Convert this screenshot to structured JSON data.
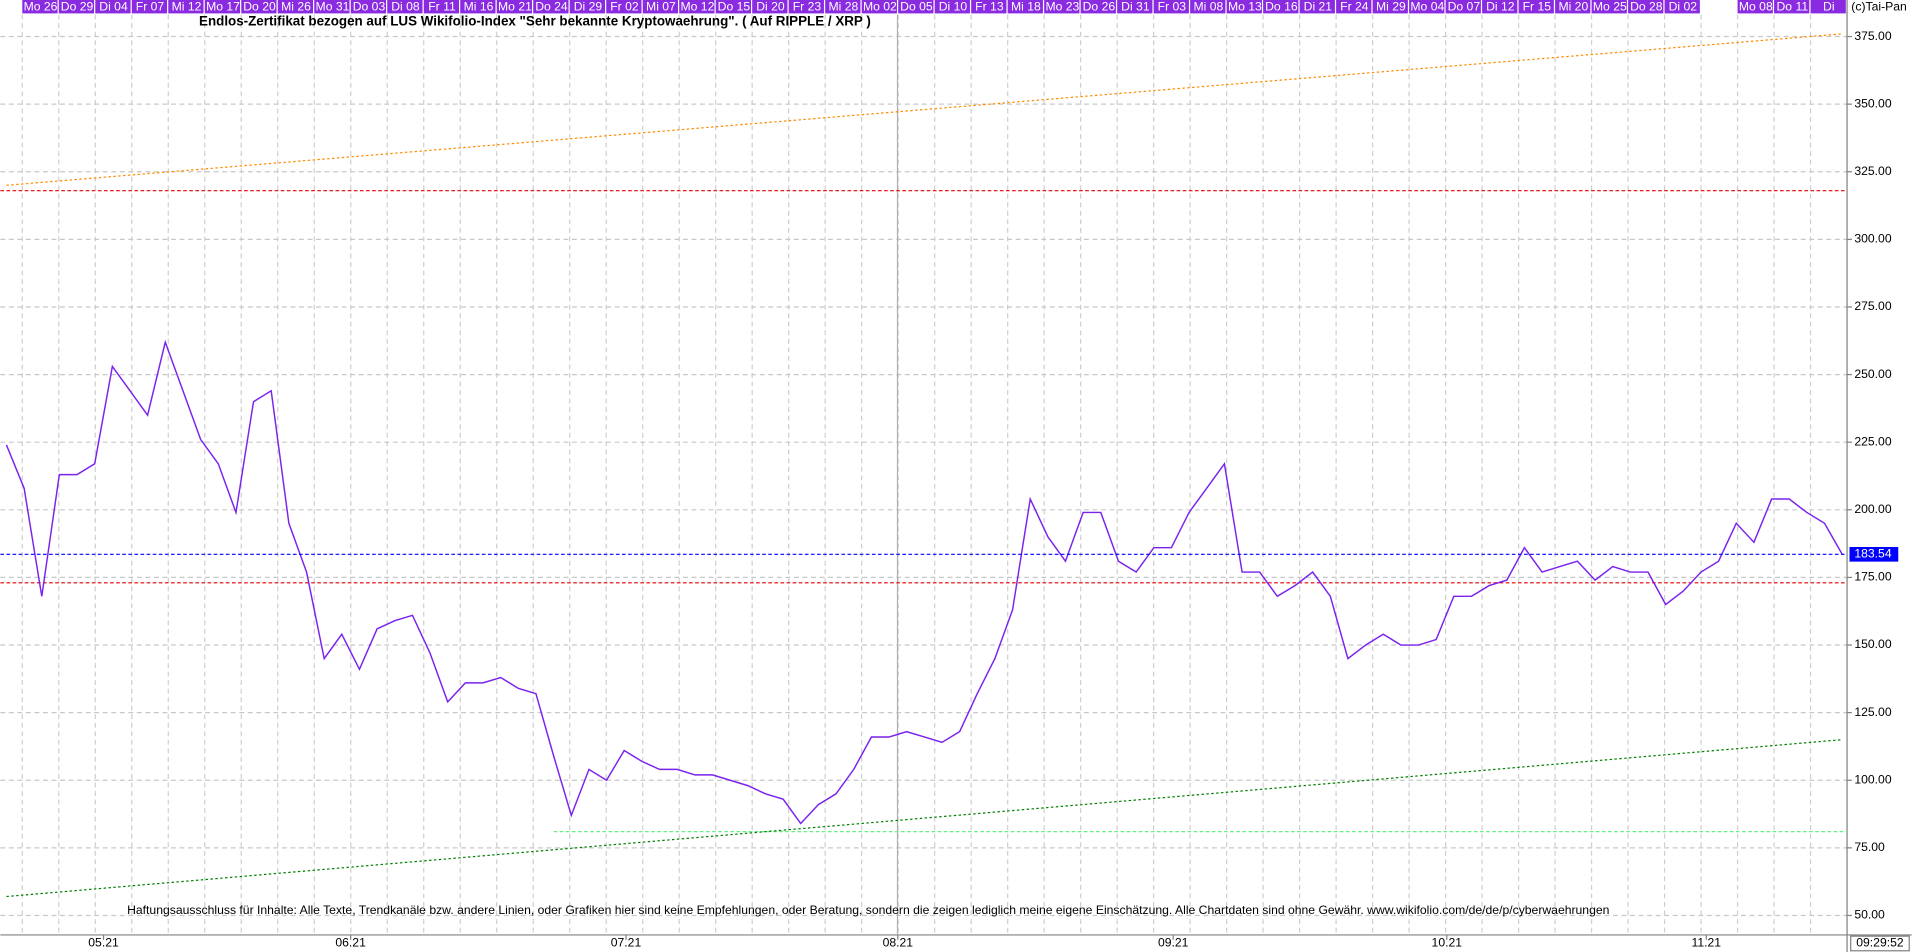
{
  "chart_data": {
    "type": "line",
    "title": "Endlos-Zertifikat bezogen auf LUS Wikifolio-Index \"Sehr bekannte Kryptowaehrung\". ( Auf RIPPLE / XRP )",
    "copyright": "(c)Tai-Pan",
    "disclaimer": "Haftungsausschluss für Inhalte: Alle Texte, Trendkanäle bzw. andere Linien, oder Grafiken hier sind keine Empfehlungen, oder Beratung, sondern die zeigen lediglich meine eigene Einschätzung. Alle Chartdaten sind ohne Gewähr.  www.wikifolio.com/de/de/p/cyberwaehrungen",
    "time": "09:29:52",
    "top_labels": [
      "Mo 26",
      "Do 29",
      "Di 04",
      "Fr 07",
      "Mi 12",
      "Mo 17",
      "Do 20",
      "Mi 26",
      "Mo 31",
      "Do 03",
      "Di 08",
      "Fr 11",
      "Mi 16",
      "Mo 21",
      "Do 24",
      "Di 29",
      "Fr 02",
      "Mi 07",
      "Mo 12",
      "Do 15",
      "Di 20",
      "Fr 23",
      "Mi 28",
      "Mo 02",
      "Do 05",
      "Di 10",
      "Fr 13",
      "Mi 18",
      "Mo 23",
      "Do 26",
      "Di 31",
      "Fr 03",
      "Mi 08",
      "Mo 13",
      "Do 16",
      "Di 21",
      "Fr 24",
      "Mi 29",
      "Mo 04",
      "Do 07",
      "Di 12",
      "Fr 15",
      "Mi 20",
      "Mo 25",
      "Do 28",
      "Di 02",
      null,
      "Mo 08",
      "Do 11",
      "Di"
    ],
    "values": [
      224,
      208,
      168,
      213,
      213,
      217,
      253,
      244,
      235,
      262,
      244,
      226,
      217,
      199,
      240,
      244,
      195,
      177,
      145,
      154,
      141,
      156,
      159,
      161,
      147,
      129,
      136,
      136,
      138,
      134,
      132,
      109,
      87,
      104,
      100,
      111,
      107,
      104,
      104,
      102,
      102,
      100,
      98,
      95,
      93,
      84,
      91,
      95,
      104,
      116,
      116,
      118,
      116,
      114,
      118,
      132,
      145,
      163,
      204,
      190,
      181,
      199,
      199,
      181,
      177,
      186,
      186,
      199,
      208,
      217,
      177,
      177,
      168,
      172,
      177,
      168,
      145,
      150,
      154,
      150,
      150,
      152,
      168,
      168,
      172,
      174,
      186,
      177,
      179,
      181,
      174,
      179,
      177,
      177,
      165,
      170,
      177,
      181,
      195,
      188,
      204,
      204,
      199,
      195,
      183.54
    ],
    "color": "#7a22ee",
    "last_color": "#0000ff",
    "xlim": [
      0,
      104
    ],
    "xticks": [
      {
        "value": 5.5,
        "label": "05.21"
      },
      {
        "value": 19.5,
        "label": "06.21"
      },
      {
        "value": 35.1,
        "label": "07.21"
      },
      {
        "value": 50.5,
        "label": "08.21"
      },
      {
        "value": 66.1,
        "label": "09.21"
      },
      {
        "value": 81.6,
        "label": "10.21"
      },
      {
        "value": 96.3,
        "label": "11.21"
      }
    ],
    "ylim": [
      42.8,
      383.1
    ],
    "yticks": [
      {
        "value": 50,
        "label": "50.00"
      },
      {
        "value": 75,
        "label": "75.00"
      },
      {
        "value": 100,
        "label": "100.00"
      },
      {
        "value": 125,
        "label": "125.00"
      },
      {
        "value": 150,
        "label": "150.00"
      },
      {
        "value": 175,
        "label": "175.00"
      },
      {
        "value": 200,
        "label": "200.00"
      },
      {
        "value": 225,
        "label": "225.00"
      },
      {
        "value": 250,
        "label": "250.00"
      },
      {
        "value": 275,
        "label": "275.00"
      },
      {
        "value": 300,
        "label": "300.00"
      },
      {
        "value": 325,
        "label": "325.00"
      },
      {
        "value": 350,
        "label": "350.00"
      },
      {
        "value": 375,
        "label": "375.00"
      }
    ],
    "grid": true,
    "reference_lines": [
      {
        "value": 318,
        "color": "#e00000"
      },
      {
        "value": 173,
        "color": "#e00000"
      },
      {
        "value": 81,
        "from": 31,
        "color": "#66ee88"
      }
    ],
    "trend_lines": [
      {
        "from": [
          0,
          57
        ],
        "to": [
          104,
          115
        ],
        "color": "#008000"
      },
      {
        "from": [
          0,
          320
        ],
        "to": [
          104,
          376
        ],
        "color": "#ff8c00"
      }
    ]
  }
}
